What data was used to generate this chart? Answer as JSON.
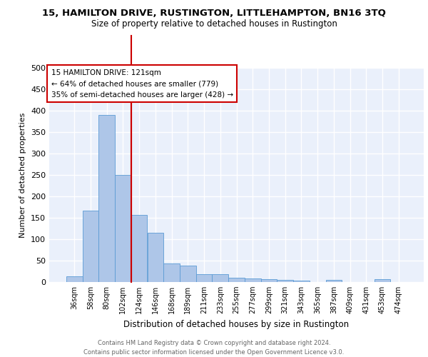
{
  "title1": "15, HAMILTON DRIVE, RUSTINGTON, LITTLEHAMPTON, BN16 3TQ",
  "title2": "Size of property relative to detached houses in Rustington",
  "xlabel": "Distribution of detached houses by size in Rustington",
  "ylabel": "Number of detached properties",
  "categories": [
    "36sqm",
    "58sqm",
    "80sqm",
    "102sqm",
    "124sqm",
    "146sqm",
    "168sqm",
    "189sqm",
    "211sqm",
    "233sqm",
    "255sqm",
    "277sqm",
    "299sqm",
    "321sqm",
    "343sqm",
    "365sqm",
    "387sqm",
    "409sqm",
    "431sqm",
    "453sqm",
    "474sqm"
  ],
  "values": [
    13,
    167,
    390,
    250,
    157,
    115,
    44,
    39,
    19,
    18,
    10,
    8,
    6,
    5,
    4,
    0,
    5,
    0,
    0,
    6,
    0
  ],
  "bar_color": "#aec6e8",
  "bar_edge_color": "#5b9bd5",
  "bg_color": "#eaf0fb",
  "grid_color": "#ffffff",
  "annotation_line_label": "15 HAMILTON DRIVE: 121sqm",
  "annotation_text1": "← 64% of detached houses are smaller (779)",
  "annotation_text2": "35% of semi-detached houses are larger (428) →",
  "annotation_box_color": "#ffffff",
  "annotation_box_edge": "#cc0000",
  "vline_color": "#cc0000",
  "footer": "Contains HM Land Registry data © Crown copyright and database right 2024.\nContains public sector information licensed under the Open Government Licence v3.0.",
  "ylim": [
    0,
    500
  ],
  "yticks": [
    0,
    50,
    100,
    150,
    200,
    250,
    300,
    350,
    400,
    450,
    500
  ]
}
